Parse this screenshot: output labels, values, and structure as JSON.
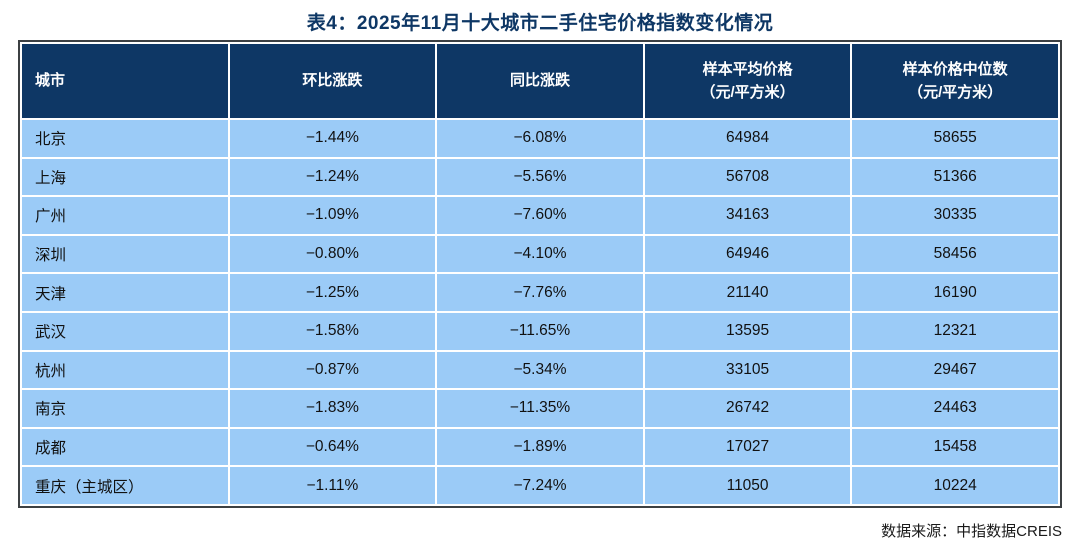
{
  "chart_data": {
    "type": "table",
    "title": "表4：2025年11月十大城市二手住宅价格指数变化情况",
    "columns": [
      "城市",
      "环比涨跌",
      "同比涨跌",
      "样本平均价格（元/平方米）",
      "样本价格中位数（元/平方米）"
    ],
    "rows": [
      [
        "北京",
        "−1.44%",
        "−6.08%",
        "64984",
        "58655"
      ],
      [
        "上海",
        "−1.24%",
        "−5.56%",
        "56708",
        "51366"
      ],
      [
        "广州",
        "−1.09%",
        "−7.60%",
        "34163",
        "30335"
      ],
      [
        "深圳",
        "−0.80%",
        "−4.10%",
        "64946",
        "58456"
      ],
      [
        "天津",
        "−1.25%",
        "−7.76%",
        "21140",
        "16190"
      ],
      [
        "武汉",
        "−1.58%",
        "−11.65%",
        "13595",
        "12321"
      ],
      [
        "杭州",
        "−0.87%",
        "−5.34%",
        "33105",
        "29467"
      ],
      [
        "南京",
        "−1.83%",
        "−11.35%",
        "26742",
        "24463"
      ],
      [
        "成都",
        "−0.64%",
        "−1.89%",
        "17027",
        "15458"
      ],
      [
        "重庆（主城区）",
        "−1.11%",
        "−7.24%",
        "11050",
        "10224"
      ]
    ],
    "source": "数据来源：中指数据CREIS"
  },
  "display": {
    "headers": [
      "城市",
      "环比涨跌",
      "同比涨跌",
      "样本平均价格\n（元/平方米）",
      "样本价格中位数\n（元/平方米）"
    ]
  },
  "colors": {
    "header_bg": "#0E3765",
    "row_bg": "#9BCBF7",
    "title_text": "#0E3765",
    "header_text": "#ffffff",
    "body_text": "#111111",
    "outer_border": "#3C4043",
    "grid_line": "#ffffff"
  }
}
